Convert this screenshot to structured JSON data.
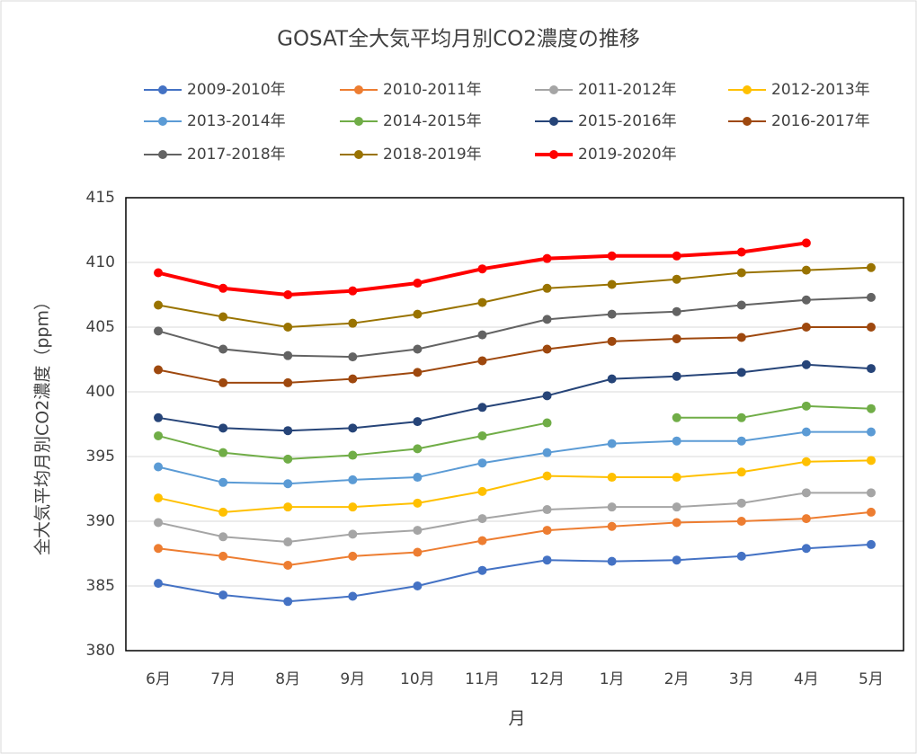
{
  "chart_data": {
    "type": "line",
    "title": "GOSAT全大気平均月別CO2濃度の推移",
    "x_label": "月",
    "y_label": "全大気平均月別CO2濃度（ppm）",
    "categories": [
      "6月",
      "7月",
      "8月",
      "9月",
      "10月",
      "11月",
      "12月",
      "1月",
      "2月",
      "3月",
      "4月",
      "5月"
    ],
    "ylim": [
      380,
      415
    ],
    "yticks": [
      380,
      385,
      390,
      395,
      400,
      405,
      410,
      415
    ],
    "grid": true,
    "legend": "top",
    "series": [
      {
        "name": "2009-2010年",
        "color": "#4472c4",
        "values": [
          385.2,
          384.3,
          383.8,
          384.2,
          385.0,
          386.2,
          387.0,
          386.9,
          387.0,
          387.3,
          387.9,
          388.2
        ]
      },
      {
        "name": "2010-2011年",
        "color": "#ed7d31",
        "values": [
          387.9,
          387.3,
          386.6,
          387.3,
          387.6,
          388.5,
          389.3,
          389.6,
          389.9,
          390.0,
          390.2,
          390.7
        ]
      },
      {
        "name": "2011-2012年",
        "color": "#a5a5a5",
        "values": [
          389.9,
          388.8,
          388.4,
          389.0,
          389.3,
          390.2,
          390.9,
          391.1,
          391.1,
          391.4,
          392.2,
          392.2
        ]
      },
      {
        "name": "2012-2013年",
        "color": "#ffc000",
        "values": [
          391.8,
          390.7,
          391.1,
          391.1,
          391.4,
          392.3,
          393.5,
          393.4,
          393.4,
          393.8,
          394.6,
          394.7
        ]
      },
      {
        "name": "2013-2014年",
        "color": "#5b9bd5",
        "values": [
          394.2,
          393.0,
          392.9,
          393.2,
          393.4,
          394.5,
          395.3,
          396.0,
          396.2,
          396.2,
          396.9,
          396.9
        ]
      },
      {
        "name": "2014-2015年",
        "color": "#70ad47",
        "values": [
          396.6,
          395.3,
          394.8,
          395.1,
          395.6,
          396.6,
          397.6,
          null,
          398.0,
          398.0,
          398.9,
          398.7
        ]
      },
      {
        "name": "2015-2016年",
        "color": "#264478",
        "values": [
          398.0,
          397.2,
          397.0,
          397.2,
          397.7,
          398.8,
          399.7,
          401.0,
          401.2,
          401.5,
          402.1,
          401.8
        ]
      },
      {
        "name": "2016-2017年",
        "color": "#9e480e",
        "values": [
          401.7,
          400.7,
          400.7,
          401.0,
          401.5,
          402.4,
          403.3,
          403.9,
          404.1,
          404.2,
          405.0,
          405.0
        ]
      },
      {
        "name": "2017-2018年",
        "color": "#636363",
        "values": [
          404.7,
          403.3,
          402.8,
          402.7,
          403.3,
          404.4,
          405.6,
          406.0,
          406.2,
          406.7,
          407.1,
          407.3
        ]
      },
      {
        "name": "2018-2019年",
        "color": "#997300",
        "values": [
          406.7,
          405.8,
          405.0,
          405.3,
          406.0,
          406.9,
          408.0,
          408.3,
          408.7,
          409.2,
          409.4,
          409.6
        ]
      },
      {
        "name": "2019-2020年",
        "color": "#ff0000",
        "values": [
          409.2,
          408.0,
          407.5,
          407.8,
          408.4,
          409.5,
          410.3,
          410.5,
          410.5,
          410.8,
          411.5,
          null
        ]
      }
    ]
  }
}
